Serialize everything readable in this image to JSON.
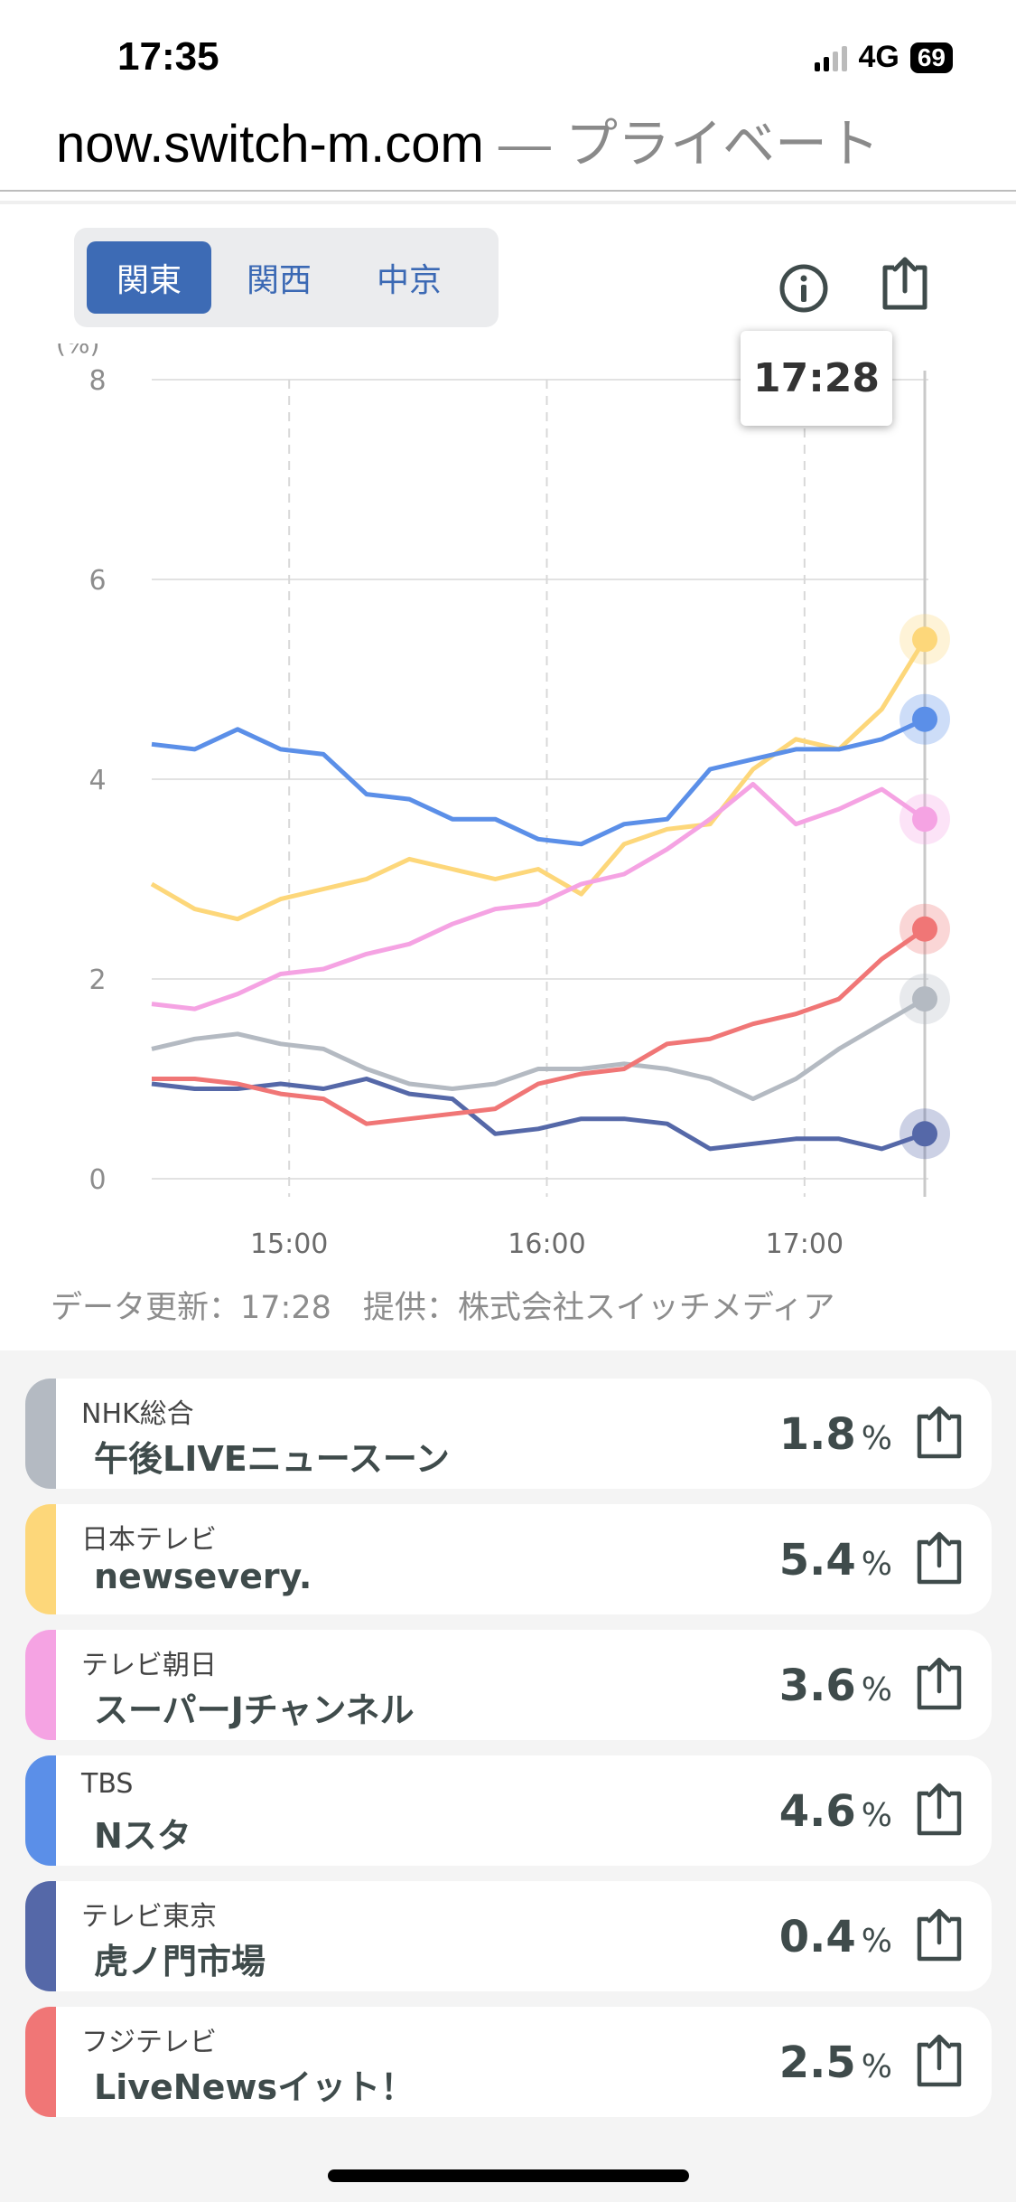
{
  "status": {
    "time": "17:35",
    "network": "4G",
    "battery": "69"
  },
  "browser": {
    "host": "now.switch-m.com",
    "mode": " — プライベート"
  },
  "region_tabs": [
    {
      "label": "関東",
      "active": true
    },
    {
      "label": "関西",
      "active": false
    },
    {
      "label": "中京",
      "active": false
    }
  ],
  "toolbar": {
    "info_icon": "info-icon",
    "share_icon": "share-icon"
  },
  "tooltip": {
    "time": "17:28"
  },
  "footer": {
    "note": "データ更新：17:28　提供：株式会社スイッチメディア"
  },
  "chart_data": {
    "type": "line",
    "ylabel": "(%)",
    "ylim": [
      0,
      8
    ],
    "yticks": [
      "0",
      "2",
      "4",
      "6",
      "8"
    ],
    "xticks": [
      "15:00",
      "16:00",
      "17:00"
    ],
    "x_range": [
      "14:28",
      "17:28"
    ],
    "grid": true,
    "x": [
      "14:28",
      "14:38",
      "14:48",
      "14:58",
      "15:08",
      "15:18",
      "15:28",
      "15:38",
      "15:48",
      "15:58",
      "16:08",
      "16:18",
      "16:28",
      "16:38",
      "16:48",
      "16:58",
      "17:08",
      "17:18",
      "17:28"
    ],
    "series": [
      {
        "name": "NHK総合",
        "color": "#B4BAC2",
        "values": [
          1.3,
          1.4,
          1.45,
          1.35,
          1.3,
          1.1,
          0.95,
          0.9,
          0.95,
          1.1,
          1.1,
          1.15,
          1.1,
          1.0,
          0.8,
          1.0,
          1.3,
          1.55,
          1.8
        ]
      },
      {
        "name": "日本テレビ",
        "color": "#FDD77A",
        "values": [
          2.95,
          2.7,
          2.6,
          2.8,
          2.9,
          3.0,
          3.2,
          3.1,
          3.0,
          3.1,
          2.85,
          3.35,
          3.5,
          3.55,
          4.1,
          4.4,
          4.3,
          4.7,
          5.4
        ]
      },
      {
        "name": "テレビ朝日",
        "color": "#F5A3E3",
        "values": [
          1.75,
          1.7,
          1.85,
          2.05,
          2.1,
          2.25,
          2.35,
          2.55,
          2.7,
          2.75,
          2.95,
          3.05,
          3.3,
          3.6,
          3.95,
          3.55,
          3.7,
          3.9,
          3.6
        ]
      },
      {
        "name": "TBS",
        "color": "#5B8FE8",
        "values": [
          4.35,
          4.3,
          4.5,
          4.3,
          4.25,
          3.85,
          3.8,
          3.6,
          3.6,
          3.4,
          3.35,
          3.55,
          3.6,
          4.1,
          4.2,
          4.3,
          4.3,
          4.4,
          4.6
        ]
      },
      {
        "name": "テレビ東京",
        "color": "#5568A8",
        "values": [
          0.95,
          0.9,
          0.9,
          0.95,
          0.9,
          1.0,
          0.85,
          0.8,
          0.45,
          0.5,
          0.6,
          0.6,
          0.55,
          0.3,
          0.35,
          0.4,
          0.4,
          0.3,
          0.45
        ]
      },
      {
        "name": "フジテレビ",
        "color": "#F07676",
        "values": [
          1.0,
          1.0,
          0.95,
          0.85,
          0.8,
          0.55,
          0.6,
          0.65,
          0.7,
          0.95,
          1.05,
          1.1,
          1.35,
          1.4,
          1.55,
          1.65,
          1.8,
          2.2,
          2.5
        ]
      }
    ]
  },
  "channels": [
    {
      "channel": "NHK総合",
      "program": "午後LIVEニュースーン",
      "rating": "1.8",
      "unit": "%",
      "color": "#B4BAC2"
    },
    {
      "channel": "日本テレビ",
      "program": "newsevery.",
      "rating": "5.4",
      "unit": "%",
      "color": "#FDD77A"
    },
    {
      "channel": "テレビ朝日",
      "program": "スーパーJチャンネル",
      "rating": "3.6",
      "unit": "%",
      "color": "#F5A3E3"
    },
    {
      "channel": "TBS",
      "program": "Nスタ",
      "rating": "4.6",
      "unit": "%",
      "color": "#5B8FE8"
    },
    {
      "channel": "テレビ東京",
      "program": "虎ノ門市場",
      "rating": "0.4",
      "unit": "%",
      "color": "#5568A8"
    },
    {
      "channel": "フジテレビ",
      "program": "LiveNewsイット！",
      "rating": "2.5",
      "unit": "%",
      "color": "#F07676"
    }
  ]
}
